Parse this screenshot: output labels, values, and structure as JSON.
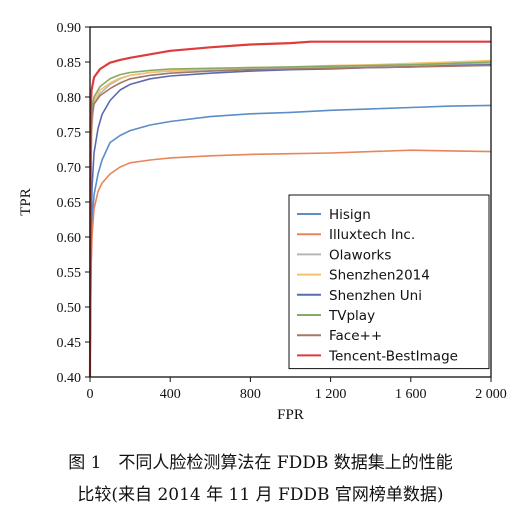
{
  "chart_data": {
    "type": "line",
    "xlabel": "FPR",
    "ylabel": "TPR",
    "xlim": [
      0,
      2000
    ],
    "ylim": [
      0.4,
      0.9
    ],
    "xticks": [
      0,
      400,
      800,
      1200,
      1600,
      2000
    ],
    "xtick_labels": [
      "0",
      "400",
      "800",
      "1 200",
      "1 600",
      "2 000"
    ],
    "yticks": [
      0.4,
      0.45,
      0.5,
      0.55,
      0.6,
      0.65,
      0.7,
      0.75,
      0.8,
      0.85,
      0.9
    ],
    "ytick_labels": [
      "0.40",
      "0.45",
      "0.50",
      "0.55",
      "0.60",
      "0.65",
      "0.70",
      "0.75",
      "0.80",
      "0.85",
      "0.90"
    ],
    "grid": false,
    "legend_position": "lower-right",
    "series": [
      {
        "name": "Hisign",
        "color": "#5b8ec6",
        "points": [
          [
            0,
            0.4
          ],
          [
            5,
            0.55
          ],
          [
            10,
            0.62
          ],
          [
            20,
            0.66
          ],
          [
            40,
            0.69
          ],
          [
            60,
            0.71
          ],
          [
            100,
            0.735
          ],
          [
            150,
            0.745
          ],
          [
            200,
            0.752
          ],
          [
            300,
            0.76
          ],
          [
            400,
            0.765
          ],
          [
            600,
            0.772
          ],
          [
            800,
            0.776
          ],
          [
            1000,
            0.778
          ],
          [
            1200,
            0.781
          ],
          [
            1400,
            0.783
          ],
          [
            1600,
            0.785
          ],
          [
            1800,
            0.787
          ],
          [
            2000,
            0.788
          ]
        ]
      },
      {
        "name": "Illuxtech Inc.",
        "color": "#e7865b",
        "points": [
          [
            0,
            0.4
          ],
          [
            5,
            0.55
          ],
          [
            10,
            0.6
          ],
          [
            20,
            0.64
          ],
          [
            40,
            0.665
          ],
          [
            60,
            0.677
          ],
          [
            100,
            0.69
          ],
          [
            150,
            0.7
          ],
          [
            200,
            0.706
          ],
          [
            300,
            0.71
          ],
          [
            400,
            0.713
          ],
          [
            600,
            0.716
          ],
          [
            800,
            0.718
          ],
          [
            1000,
            0.719
          ],
          [
            1200,
            0.72
          ],
          [
            1400,
            0.722
          ],
          [
            1600,
            0.724
          ],
          [
            1800,
            0.723
          ],
          [
            2000,
            0.722
          ]
        ]
      },
      {
        "name": "Olaworks",
        "color": "#b7b7b7",
        "points": [
          [
            0,
            0.4
          ],
          [
            5,
            0.7
          ],
          [
            10,
            0.76
          ],
          [
            20,
            0.79
          ],
          [
            50,
            0.805
          ],
          [
            100,
            0.818
          ],
          [
            150,
            0.826
          ],
          [
            200,
            0.831
          ],
          [
            300,
            0.835
          ],
          [
            400,
            0.837
          ],
          [
            600,
            0.839
          ],
          [
            800,
            0.84
          ],
          [
            1000,
            0.841
          ],
          [
            1200,
            0.842
          ],
          [
            1400,
            0.843
          ],
          [
            1600,
            0.844
          ],
          [
            1800,
            0.846
          ],
          [
            2000,
            0.848
          ]
        ]
      },
      {
        "name": "Shenzhen2014",
        "color": "#f3c26a",
        "points": [
          [
            0,
            0.4
          ],
          [
            5,
            0.72
          ],
          [
            10,
            0.77
          ],
          [
            20,
            0.795
          ],
          [
            50,
            0.81
          ],
          [
            100,
            0.82
          ],
          [
            150,
            0.827
          ],
          [
            200,
            0.831
          ],
          [
            300,
            0.835
          ],
          [
            400,
            0.838
          ],
          [
            600,
            0.84
          ],
          [
            800,
            0.842
          ],
          [
            1000,
            0.843
          ],
          [
            1200,
            0.845
          ],
          [
            1400,
            0.846
          ],
          [
            1600,
            0.848
          ],
          [
            1800,
            0.85
          ],
          [
            2000,
            0.852
          ]
        ]
      },
      {
        "name": "Shenzhen Uni",
        "color": "#5a6ab0",
        "points": [
          [
            0,
            0.4
          ],
          [
            5,
            0.6
          ],
          [
            10,
            0.67
          ],
          [
            20,
            0.72
          ],
          [
            40,
            0.755
          ],
          [
            60,
            0.775
          ],
          [
            100,
            0.795
          ],
          [
            150,
            0.81
          ],
          [
            200,
            0.818
          ],
          [
            300,
            0.826
          ],
          [
            400,
            0.83
          ],
          [
            600,
            0.834
          ],
          [
            800,
            0.837
          ],
          [
            1000,
            0.839
          ],
          [
            1200,
            0.84
          ],
          [
            1400,
            0.842
          ],
          [
            1600,
            0.843
          ],
          [
            1800,
            0.845
          ],
          [
            2000,
            0.846
          ]
        ]
      },
      {
        "name": "TVplay",
        "color": "#86aa66",
        "points": [
          [
            0,
            0.4
          ],
          [
            5,
            0.75
          ],
          [
            10,
            0.785
          ],
          [
            20,
            0.8
          ],
          [
            50,
            0.815
          ],
          [
            100,
            0.826
          ],
          [
            150,
            0.832
          ],
          [
            200,
            0.835
          ],
          [
            300,
            0.838
          ],
          [
            400,
            0.84
          ],
          [
            600,
            0.841
          ],
          [
            800,
            0.842
          ],
          [
            1000,
            0.843
          ],
          [
            1200,
            0.844
          ],
          [
            1400,
            0.845
          ],
          [
            1600,
            0.846
          ],
          [
            1800,
            0.848
          ],
          [
            2000,
            0.85
          ]
        ]
      },
      {
        "name": "Face++",
        "color": "#a47866",
        "points": [
          [
            0,
            0.4
          ],
          [
            5,
            0.74
          ],
          [
            10,
            0.775
          ],
          [
            20,
            0.79
          ],
          [
            50,
            0.802
          ],
          [
            100,
            0.812
          ],
          [
            150,
            0.82
          ],
          [
            200,
            0.826
          ],
          [
            300,
            0.831
          ],
          [
            400,
            0.834
          ],
          [
            600,
            0.837
          ],
          [
            800,
            0.839
          ],
          [
            1000,
            0.84
          ],
          [
            1200,
            0.841
          ],
          [
            1400,
            0.842
          ],
          [
            1600,
            0.843
          ],
          [
            1800,
            0.844
          ],
          [
            2000,
            0.845
          ]
        ]
      },
      {
        "name": "Tencent-BestImage",
        "color": "#de3b3b",
        "points": [
          [
            0,
            0.4
          ],
          [
            3,
            0.78
          ],
          [
            8,
            0.81
          ],
          [
            20,
            0.828
          ],
          [
            50,
            0.84
          ],
          [
            100,
            0.849
          ],
          [
            150,
            0.853
          ],
          [
            200,
            0.856
          ],
          [
            300,
            0.861
          ],
          [
            400,
            0.866
          ],
          [
            600,
            0.871
          ],
          [
            800,
            0.875
          ],
          [
            1000,
            0.877
          ],
          [
            1100,
            0.879
          ],
          [
            1200,
            0.879
          ],
          [
            1400,
            0.879
          ],
          [
            1600,
            0.879
          ],
          [
            1800,
            0.879
          ],
          [
            2000,
            0.879
          ]
        ]
      }
    ]
  },
  "caption": {
    "line1": "图 1　不同人脸检测算法在 FDDB 数据集上的性能",
    "line2": "比较(来自 2014 年 11 月 FDDB 官网榜单数据)"
  }
}
